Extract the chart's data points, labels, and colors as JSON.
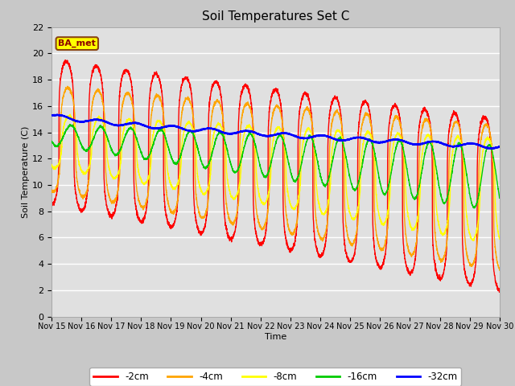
{
  "title": "Soil Temperatures Set C",
  "xlabel": "Time",
  "ylabel": "Soil Temperature (C)",
  "ylim": [
    0,
    22
  ],
  "yticks": [
    0,
    2,
    4,
    6,
    8,
    10,
    12,
    14,
    16,
    18,
    20,
    22
  ],
  "colors": {
    "-2cm": "#ff0000",
    "-4cm": "#ffa500",
    "-8cm": "#ffff00",
    "-16cm": "#00cc00",
    "-32cm": "#0000ff"
  },
  "annotation_text": "BA_met",
  "annotation_bg": "#ffff00",
  "annotation_border": "#8B4513",
  "annotation_text_color": "#8B0000",
  "fig_bg": "#c8c8c8",
  "plot_bg": "#e0e0e0",
  "grid_color": "#ffffff",
  "figsize": [
    6.4,
    4.8
  ],
  "dpi": 100
}
